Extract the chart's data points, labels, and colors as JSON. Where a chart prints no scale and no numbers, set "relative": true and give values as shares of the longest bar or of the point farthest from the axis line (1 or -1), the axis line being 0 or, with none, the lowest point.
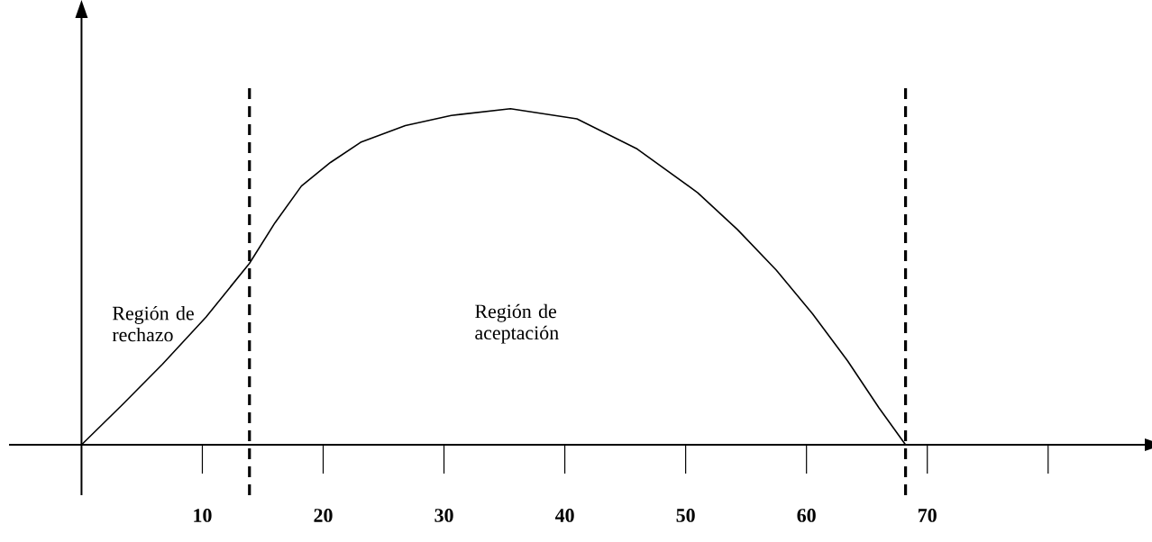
{
  "chart_data": {
    "type": "line",
    "relative": true,
    "x": [
      0,
      3.4,
      6.7,
      10.3,
      13.9,
      16,
      18.2,
      20.6,
      23.1,
      26.8,
      30.6,
      35.5,
      41,
      46,
      51,
      54.3,
      57.5,
      60.5,
      63.4,
      66,
      68.2
    ],
    "series": [
      {
        "color": "#000000",
        "values": [
          0,
          0.12,
          0.24,
          0.38,
          0.54,
          0.66,
          0.77,
          0.84,
          0.9,
          0.95,
          0.98,
          1.0,
          0.97,
          0.88,
          0.75,
          0.64,
          0.52,
          0.39,
          0.25,
          0.11,
          0
        ]
      }
    ],
    "xlim": [
      -6,
      88
    ],
    "xticks": [
      10,
      20,
      30,
      40,
      50,
      60,
      70,
      {
        "value": 80,
        "label": null
      }
    ],
    "ref_lines": [
      {
        "axis": "x",
        "value": 13.9,
        "line_style": "dashed"
      },
      {
        "axis": "x",
        "value": 68.2,
        "line_style": "dashed"
      }
    ],
    "annotations": [
      "Región de rechazo",
      "Región de aceptación"
    ],
    "grid": false,
    "marker": "none",
    "line_style": "solid"
  }
}
